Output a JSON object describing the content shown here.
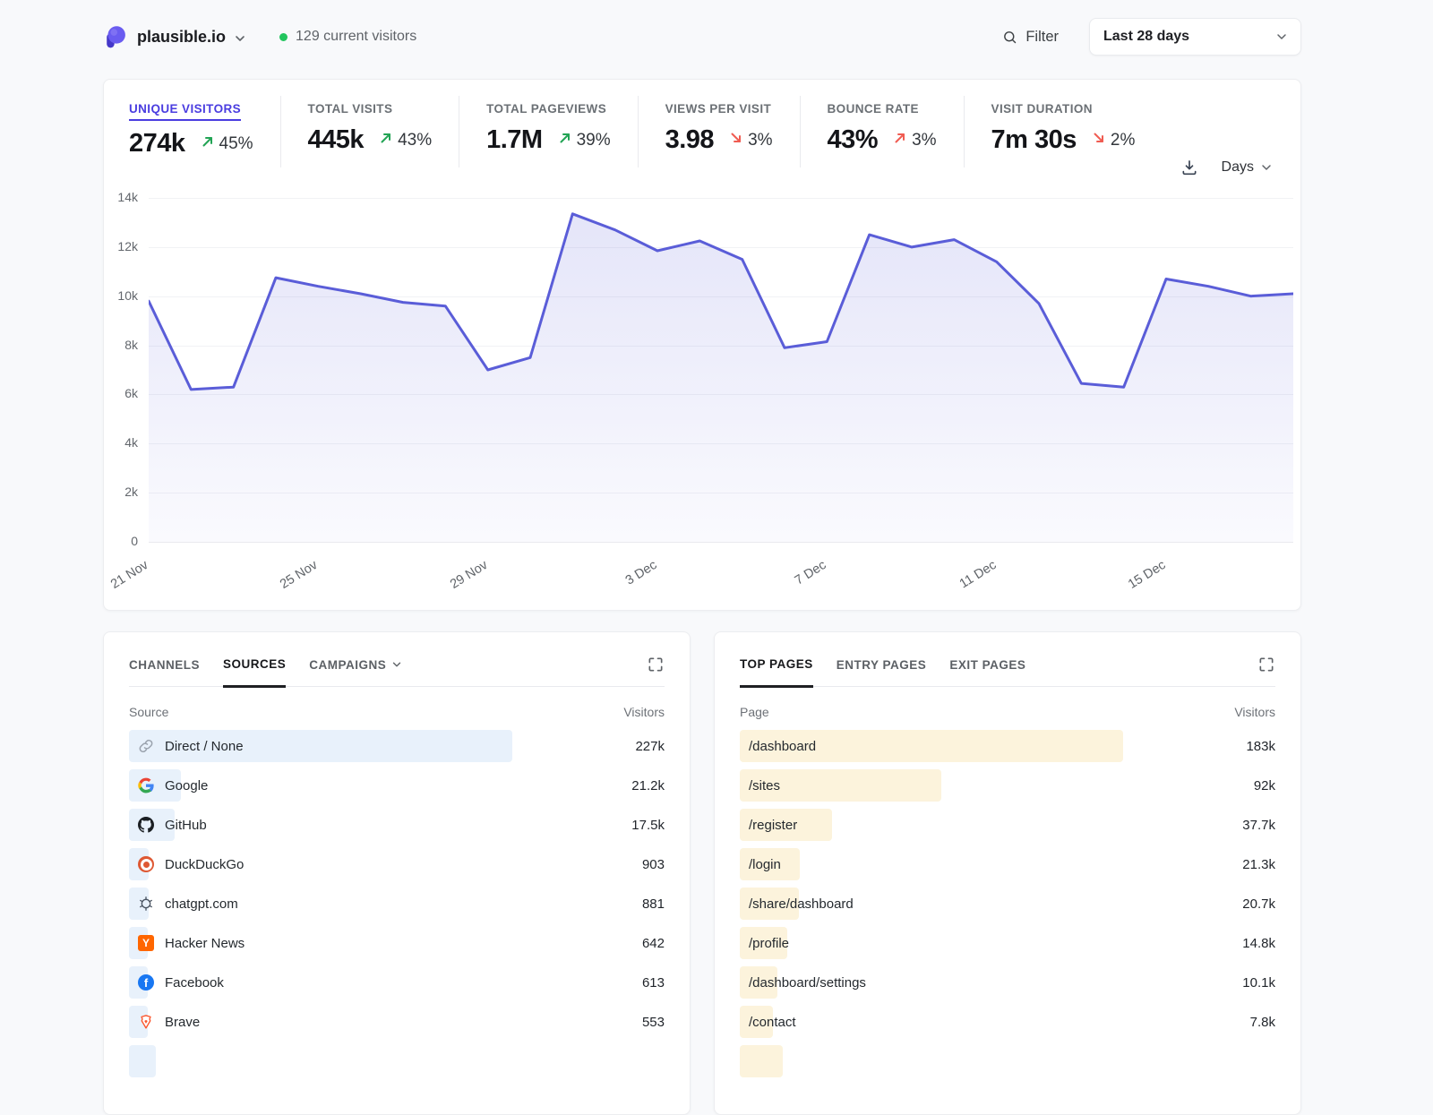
{
  "topbar": {
    "site": "plausible.io",
    "current_visitors": "129 current visitors",
    "filter_label": "Filter",
    "date_range": "Last 28 days"
  },
  "stats": [
    {
      "label": "UNIQUE VISITORS",
      "value": "274k",
      "change": "45%",
      "arrow": "up",
      "tone": "good",
      "active": true
    },
    {
      "label": "TOTAL VISITS",
      "value": "445k",
      "change": "43%",
      "arrow": "up",
      "tone": "good",
      "active": false
    },
    {
      "label": "TOTAL PAGEVIEWS",
      "value": "1.7M",
      "change": "39%",
      "arrow": "up",
      "tone": "good",
      "active": false
    },
    {
      "label": "VIEWS PER VISIT",
      "value": "3.98",
      "change": "3%",
      "arrow": "down",
      "tone": "bad",
      "active": false
    },
    {
      "label": "BOUNCE RATE",
      "value": "43%",
      "change": "3%",
      "arrow": "up",
      "tone": "bad",
      "active": false
    },
    {
      "label": "VISIT DURATION",
      "value": "7m 30s",
      "change": "2%",
      "arrow": "down",
      "tone": "bad",
      "active": false
    }
  ],
  "chart_controls": {
    "interval_label": "Days"
  },
  "chart_data": {
    "type": "area",
    "series_label": "Unique Visitors",
    "values": [
      9800,
      6200,
      6300,
      10750,
      10400,
      10100,
      9750,
      9600,
      7000,
      7500,
      13350,
      12700,
      11850,
      12250,
      11500,
      7900,
      8150,
      12500,
      12000,
      12300,
      11400,
      9700,
      6450,
      6300,
      10700,
      10400,
      10000,
      10100
    ],
    "x_ticks": [
      {
        "label": "21 Nov",
        "day": 0
      },
      {
        "label": "25 Nov",
        "day": 4
      },
      {
        "label": "29 Nov",
        "day": 8
      },
      {
        "label": "3 Dec",
        "day": 12
      },
      {
        "label": "7 Dec",
        "day": 16
      },
      {
        "label": "11 Dec",
        "day": 20
      },
      {
        "label": "15 Dec",
        "day": 24
      }
    ],
    "y_tick_labels": [
      "14k",
      "12k",
      "10k",
      "8k",
      "6k",
      "4k",
      "2k",
      "0"
    ],
    "ylim": [
      0,
      14000
    ],
    "grid": true,
    "line_color": "#5a5dd8",
    "legend_position": "none"
  },
  "sources_card": {
    "tabs": [
      {
        "label": "CHANNELS",
        "active": false,
        "dropdown": false
      },
      {
        "label": "SOURCES",
        "active": true,
        "dropdown": false
      },
      {
        "label": "CAMPAIGNS",
        "active": false,
        "dropdown": true
      }
    ],
    "col_left": "Source",
    "col_right": "Visitors",
    "rows": [
      {
        "icon": "link-icon",
        "label": "Direct / None",
        "display": "227k",
        "value": 227000
      },
      {
        "icon": "google-icon",
        "label": "Google",
        "display": "21.2k",
        "value": 21200
      },
      {
        "icon": "github-icon",
        "label": "GitHub",
        "display": "17.5k",
        "value": 17500
      },
      {
        "icon": "duckduckgo-icon",
        "label": "DuckDuckGo",
        "display": "903",
        "value": 903
      },
      {
        "icon": "openai-icon",
        "label": "chatgpt.com",
        "display": "881",
        "value": 881
      },
      {
        "icon": "hackernews-icon",
        "label": "Hacker News",
        "display": "642",
        "value": 642
      },
      {
        "icon": "facebook-icon",
        "label": "Facebook",
        "display": "613",
        "value": 613
      },
      {
        "icon": "brave-icon",
        "label": "Brave",
        "display": "553",
        "value": 553
      }
    ]
  },
  "pages_card": {
    "tabs": [
      {
        "label": "TOP PAGES",
        "active": true,
        "dropdown": false
      },
      {
        "label": "ENTRY PAGES",
        "active": false,
        "dropdown": false
      },
      {
        "label": "EXIT PAGES",
        "active": false,
        "dropdown": false
      }
    ],
    "col_left": "Page",
    "col_right": "Visitors",
    "rows": [
      {
        "label": "/dashboard",
        "display": "183k",
        "value": 183000
      },
      {
        "label": "/sites",
        "display": "92k",
        "value": 92000
      },
      {
        "label": "/register",
        "display": "37.7k",
        "value": 37700
      },
      {
        "label": "/login",
        "display": "21.3k",
        "value": 21300
      },
      {
        "label": "/share/dashboard",
        "display": "20.7k",
        "value": 20700
      },
      {
        "label": "/profile",
        "display": "14.8k",
        "value": 14800
      },
      {
        "label": "/dashboard/settings",
        "display": "10.1k",
        "value": 10100
      },
      {
        "label": "/contact",
        "display": "7.8k",
        "value": 7800
      }
    ]
  }
}
